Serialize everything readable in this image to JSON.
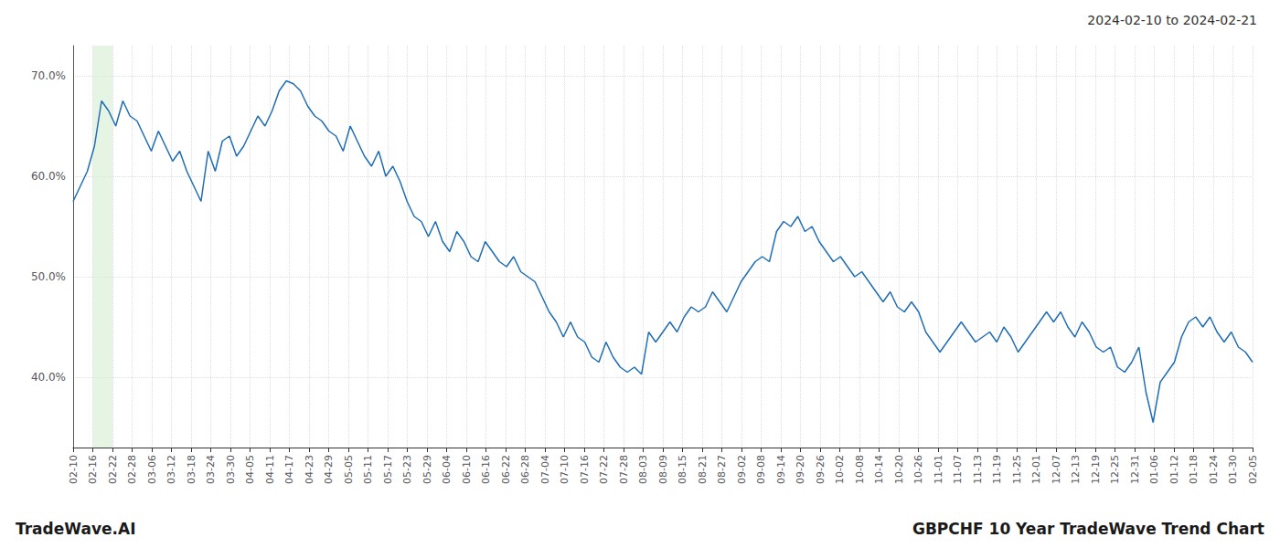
{
  "chart_data": {
    "type": "line",
    "title": "2024-02-10 to 2024-02-21",
    "annotations": [
      "TradeWave.AI",
      "GBPCHF 10 Year TradeWave Trend Chart"
    ],
    "color": "#1f6db5",
    "grid": true,
    "highlight": {
      "x": [
        1,
        2
      ],
      "color": "#d6ecd2"
    },
    "xlim": [
      0,
      60
    ],
    "xticks": [
      {
        "value": 0,
        "label": "02-10"
      },
      {
        "value": 1,
        "label": "02-16"
      },
      {
        "value": 2,
        "label": "02-22"
      },
      {
        "value": 3,
        "label": "02-28"
      },
      {
        "value": 4,
        "label": "03-06"
      },
      {
        "value": 5,
        "label": "03-12"
      },
      {
        "value": 6,
        "label": "03-18"
      },
      {
        "value": 7,
        "label": "03-24"
      },
      {
        "value": 8,
        "label": "03-30"
      },
      {
        "value": 9,
        "label": "04-05"
      },
      {
        "value": 10,
        "label": "04-11"
      },
      {
        "value": 11,
        "label": "04-17"
      },
      {
        "value": 12,
        "label": "04-23"
      },
      {
        "value": 13,
        "label": "04-29"
      },
      {
        "value": 14,
        "label": "05-05"
      },
      {
        "value": 15,
        "label": "05-11"
      },
      {
        "value": 16,
        "label": "05-17"
      },
      {
        "value": 17,
        "label": "05-23"
      },
      {
        "value": 18,
        "label": "05-29"
      },
      {
        "value": 19,
        "label": "06-04"
      },
      {
        "value": 20,
        "label": "06-10"
      },
      {
        "value": 21,
        "label": "06-16"
      },
      {
        "value": 22,
        "label": "06-22"
      },
      {
        "value": 23,
        "label": "06-28"
      },
      {
        "value": 24,
        "label": "07-04"
      },
      {
        "value": 25,
        "label": "07-10"
      },
      {
        "value": 26,
        "label": "07-16"
      },
      {
        "value": 27,
        "label": "07-22"
      },
      {
        "value": 28,
        "label": "07-28"
      },
      {
        "value": 29,
        "label": "08-03"
      },
      {
        "value": 30,
        "label": "08-09"
      },
      {
        "value": 31,
        "label": "08-15"
      },
      {
        "value": 32,
        "label": "08-21"
      },
      {
        "value": 33,
        "label": "08-27"
      },
      {
        "value": 34,
        "label": "09-02"
      },
      {
        "value": 35,
        "label": "09-08"
      },
      {
        "value": 36,
        "label": "09-14"
      },
      {
        "value": 37,
        "label": "09-20"
      },
      {
        "value": 38,
        "label": "09-26"
      },
      {
        "value": 39,
        "label": "10-02"
      },
      {
        "value": 40,
        "label": "10-08"
      },
      {
        "value": 41,
        "label": "10-14"
      },
      {
        "value": 42,
        "label": "10-20"
      },
      {
        "value": 43,
        "label": "10-26"
      },
      {
        "value": 44,
        "label": "11-01"
      },
      {
        "value": 45,
        "label": "11-07"
      },
      {
        "value": 46,
        "label": "11-13"
      },
      {
        "value": 47,
        "label": "11-19"
      },
      {
        "value": 48,
        "label": "11-25"
      },
      {
        "value": 49,
        "label": "12-01"
      },
      {
        "value": 50,
        "label": "12-07"
      },
      {
        "value": 51,
        "label": "12-13"
      },
      {
        "value": 52,
        "label": "12-19"
      },
      {
        "value": 53,
        "label": "12-25"
      },
      {
        "value": 54,
        "label": "12-31"
      },
      {
        "value": 55,
        "label": "01-06"
      },
      {
        "value": 56,
        "label": "01-12"
      },
      {
        "value": 57,
        "label": "01-18"
      },
      {
        "value": 58,
        "label": "01-24"
      },
      {
        "value": 59,
        "label": "01-30"
      },
      {
        "value": 60,
        "label": "02-05"
      }
    ],
    "ylim": [
      33,
      73
    ],
    "yticks": [
      {
        "value": 40,
        "label": "40.0%"
      },
      {
        "value": 50,
        "label": "50.0%"
      },
      {
        "value": 60,
        "label": "60.0%"
      },
      {
        "value": 70,
        "label": "70.0%"
      }
    ],
    "x": [
      0,
      0.3614,
      0.7229,
      1.0843,
      1.4458,
      1.8072,
      2.1687,
      2.5301,
      2.8916,
      3.253,
      3.6145,
      3.9759,
      4.3373,
      4.6988,
      5.0602,
      5.4217,
      5.7831,
      6.1446,
      6.506,
      6.8675,
      7.2289,
      7.5904,
      7.9518,
      8.3133,
      8.6747,
      9.0361,
      9.3976,
      9.759,
      10.1205,
      10.4819,
      10.8434,
      11.2048,
      11.5663,
      11.9277,
      12.2892,
      12.6506,
      13.012,
      13.3735,
      13.7349,
      14.0964,
      14.4578,
      14.8193,
      15.1807,
      15.5422,
      15.9036,
      16.2651,
      16.6265,
      16.988,
      17.3494,
      17.7108,
      18.0723,
      18.4337,
      18.7952,
      19.1566,
      19.5181,
      19.8795,
      20.241,
      20.6024,
      20.9639,
      21.3253,
      21.6867,
      22.0482,
      22.4096,
      22.7711,
      23.1325,
      23.494,
      23.8554,
      24.2169,
      24.5783,
      24.9398,
      25.3012,
      25.6627,
      26.0241,
      26.3855,
      26.747,
      27.1084,
      27.4699,
      27.8313,
      28.1928,
      28.5542,
      28.9157,
      29.2771,
      29.6386,
      30,
      30.3614,
      30.7229,
      31.0843,
      31.4458,
      31.8072,
      32.1687,
      32.5301,
      32.8916,
      33.253,
      33.6145,
      33.9759,
      34.3373,
      34.6988,
      35.0602,
      35.4217,
      35.7831,
      36.1446,
      36.506,
      36.8675,
      37.2289,
      37.5904,
      37.9518,
      38.3133,
      38.6747,
      39.0361,
      39.3976,
      39.759,
      40.1205,
      40.4819,
      40.8434,
      41.2048,
      41.5663,
      41.9277,
      42.2892,
      42.6506,
      43.012,
      43.3735,
      43.7349,
      44.0964,
      44.4578,
      44.8193,
      45.1807,
      45.5422,
      45.9036,
      46.2651,
      46.6265,
      46.988,
      47.3494,
      47.7108,
      48.0723,
      48.4337,
      48.7952,
      49.1566,
      49.5181,
      49.8795,
      50.241,
      50.6024,
      50.9639,
      51.3253,
      51.6867,
      52.0482,
      52.4096,
      52.7711,
      53.1325,
      53.494,
      53.8554,
      54.2169,
      54.5783,
      54.9398,
      55.3012,
      55.6627,
      56.0241,
      56.3855,
      56.747,
      57.1084,
      57.4699,
      57.8313,
      58.1928,
      58.5542,
      58.9157,
      59.2771,
      59.6386,
      60
    ],
    "values": [
      57.5,
      59.0,
      60.5,
      63.0,
      67.5,
      66.5,
      65.0,
      67.5,
      66.0,
      65.5,
      64.0,
      62.5,
      64.5,
      63.0,
      61.5,
      62.5,
      60.5,
      59.0,
      57.5,
      62.5,
      60.5,
      63.5,
      64.0,
      62.0,
      63.0,
      64.5,
      66.0,
      65.0,
      66.5,
      68.5,
      69.5,
      69.2,
      68.5,
      67.0,
      66.0,
      65.5,
      64.5,
      64.0,
      62.5,
      65.0,
      63.5,
      62.0,
      61.0,
      62.5,
      60.0,
      61.0,
      59.5,
      57.5,
      56.0,
      55.5,
      54.0,
      55.5,
      53.5,
      52.5,
      54.5,
      53.5,
      52.0,
      51.5,
      53.5,
      52.5,
      51.5,
      51.0,
      52.0,
      50.5,
      50.0,
      49.5,
      48.0,
      46.5,
      45.5,
      44.0,
      45.5,
      44.0,
      43.5,
      42.0,
      41.5,
      43.5,
      42.0,
      41.0,
      40.5,
      41.0,
      40.3,
      44.5,
      43.5,
      44.5,
      45.5,
      44.5,
      46.0,
      47.0,
      46.5,
      47.0,
      48.5,
      47.5,
      46.5,
      48.0,
      49.5,
      50.5,
      51.5,
      52.0,
      51.5,
      54.5,
      55.5,
      55.0,
      56.0,
      54.5,
      55.0,
      53.5,
      52.5,
      51.5,
      52.0,
      51.0,
      50.0,
      50.5,
      49.5,
      48.5,
      47.5,
      48.5,
      47.0,
      46.5,
      47.5,
      46.5,
      44.5,
      43.5,
      42.5,
      43.5,
      44.5,
      45.5,
      44.5,
      43.5,
      44.0,
      44.5,
      43.5,
      45.0,
      44.0,
      42.5,
      43.5,
      44.5,
      45.5,
      46.5,
      45.5,
      46.5,
      45.0,
      44.0,
      45.5,
      44.5,
      43.0,
      42.5,
      43.0,
      41.0,
      40.5,
      41.5,
      43.0,
      38.5,
      35.5,
      39.5,
      40.5,
      41.5,
      44.0,
      45.5,
      46.0,
      45.0,
      46.0,
      44.5,
      43.5,
      44.5,
      43.0,
      42.5,
      41.5
    ]
  }
}
